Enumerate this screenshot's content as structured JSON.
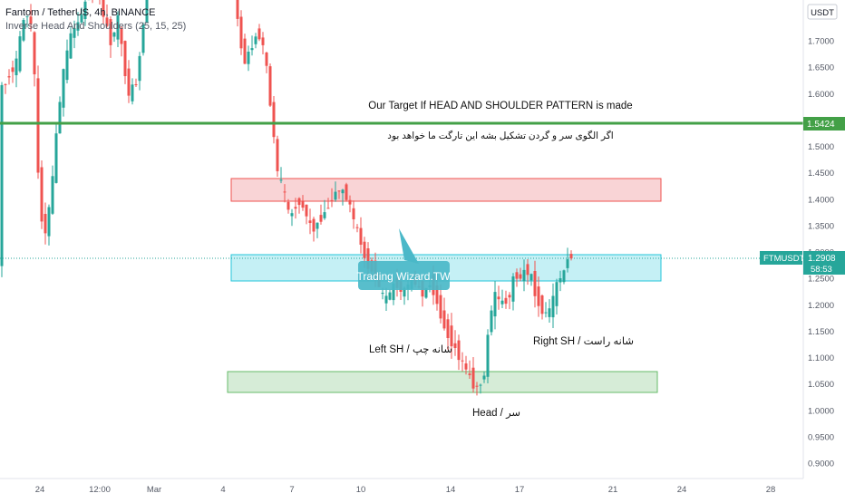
{
  "header": {
    "title": "Fantom / TetherUS, 4h, BINANCE",
    "indicator": "Inverse Head And Shoulders (25, 15, 25)"
  },
  "currency_button": "USDT",
  "price_tag": {
    "symbol": "FTMUSDT",
    "price": "1.2908",
    "countdown": "58:53"
  },
  "target_tag": "1.5424",
  "annotations": {
    "target_en": "Our Target If HEAD AND SHOULDER PATTERN is made",
    "target_fa": "اگر الگوی سر و گردن تشکیل بشه این تارگت ما خواهد بود",
    "left_sh": "Left SH /  شانه چپ",
    "right_sh": "Right SH /  شانه راست",
    "head": "Head  /   سر",
    "callout": "Trading Wizard.TW"
  },
  "colors": {
    "up": "#26a69a",
    "down": "#ef5350",
    "target_line": "#43a047",
    "red_zone": "#f7c5c8",
    "cyan_zone": "#b2ebf2",
    "green_zone": "#c8e6c9",
    "callout": "#4ab8c8"
  },
  "chart_data": {
    "type": "candlestick",
    "y_axis": {
      "min": 0.88,
      "max": 1.82,
      "ticks": [
        "0.9000",
        "0.9500",
        "1.0000",
        "1.0500",
        "1.1000",
        "1.1500",
        "1.2000",
        "1.2500",
        "1.3000",
        "1.3500",
        "1.4000",
        "1.4500",
        "1.5000",
        "1.5500",
        "1.6000",
        "1.6500",
        "1.7000",
        "1.7500"
      ]
    },
    "x_axis": {
      "labels": [
        "24",
        "12:00",
        "Mar",
        "4",
        "7",
        "10",
        "14",
        "17",
        "21",
        "24",
        "28"
      ]
    },
    "levels": {
      "target": 1.5424,
      "current": 1.2908
    },
    "zones": [
      {
        "name": "resistance",
        "low": 1.3975,
        "high": 1.44
      },
      {
        "name": "neckline",
        "low": 1.245,
        "high": 1.295
      },
      {
        "name": "head-support",
        "low": 1.035,
        "high": 1.072
      }
    ]
  }
}
